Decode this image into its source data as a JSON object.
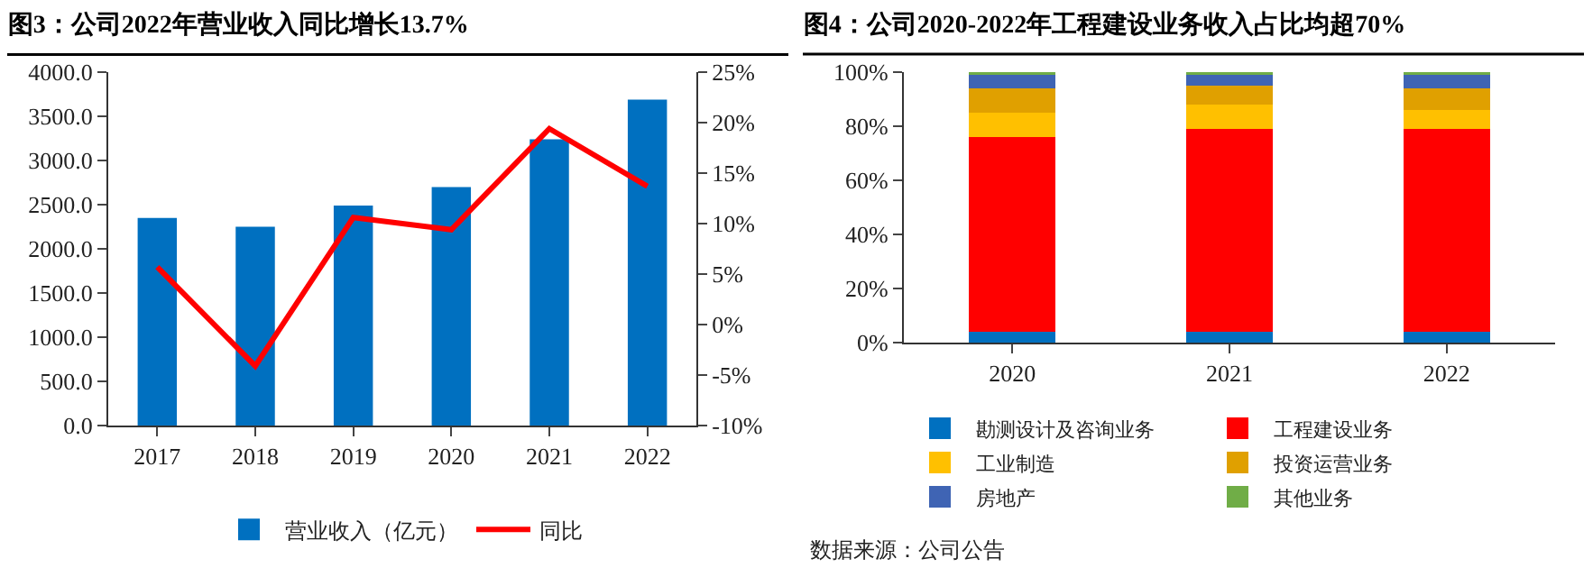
{
  "chart_data": [
    {
      "type": "bar",
      "title": "图3：公司2022年营业收入同比增长13.7%",
      "categories": [
        "2017",
        "2018",
        "2019",
        "2020",
        "2021",
        "2022"
      ],
      "series": [
        {
          "name": "营业收入（亿元）",
          "type": "bar",
          "color": "#0070c0",
          "values": [
            2350,
            2250,
            2490,
            2700,
            3240,
            3690
          ]
        },
        {
          "name": "同比",
          "type": "line",
          "axis": "y2",
          "color": "#ff0000",
          "values": [
            5.7,
            -4.1,
            10.6,
            9.4,
            19.4,
            13.7
          ]
        }
      ],
      "ylim": [
        0,
        4000
      ],
      "yticks": [
        {
          "value": 0,
          "label": "0.0"
        },
        {
          "value": 500,
          "label": "500.0"
        },
        {
          "value": 1000,
          "label": "1000.0"
        },
        {
          "value": 1500,
          "label": "1500.0"
        },
        {
          "value": 2000,
          "label": "2000.0"
        },
        {
          "value": 2500,
          "label": "2500.0"
        },
        {
          "value": 3000,
          "label": "3000.0"
        },
        {
          "value": 3500,
          "label": "3500.0"
        },
        {
          "value": 4000,
          "label": "4000.0"
        }
      ],
      "y2lim": [
        -10,
        25
      ],
      "y2ticks": [
        {
          "value": -10,
          "label": "-10%"
        },
        {
          "value": -5,
          "label": "-5%"
        },
        {
          "value": 0,
          "label": "0%"
        },
        {
          "value": 5,
          "label": "5%"
        },
        {
          "value": 10,
          "label": "10%"
        },
        {
          "value": 15,
          "label": "15%"
        },
        {
          "value": 20,
          "label": "20%"
        },
        {
          "value": 25,
          "label": "25%"
        }
      ],
      "legend": "bottom",
      "marker": "none"
    },
    {
      "type": "bar",
      "title": "图4：公司2020-2022年工程建设业务收入占比均超70%",
      "categories": [
        "2020",
        "2021",
        "2022"
      ],
      "stacked": true,
      "series": [
        {
          "name": "勘测设计及咨询业务",
          "color": "#0070c0",
          "values": [
            4,
            4,
            4
          ]
        },
        {
          "name": "工程建设业务",
          "color": "#ff0000",
          "values": [
            72,
            75,
            75
          ]
        },
        {
          "name": "工业制造",
          "color": "#ffc000",
          "values": [
            9,
            9,
            7
          ]
        },
        {
          "name": "投资运营业务",
          "color": "#e0a000",
          "values": [
            9,
            7,
            8
          ]
        },
        {
          "name": "房地产",
          "color": "#3f64b4",
          "values": [
            5,
            4,
            5
          ]
        },
        {
          "name": "其他业务",
          "color": "#70ad47",
          "values": [
            1,
            1,
            1
          ]
        }
      ],
      "ylim": [
        0,
        100
      ],
      "yticks": [
        {
          "value": 0,
          "label": "0%"
        },
        {
          "value": 20,
          "label": "20%"
        },
        {
          "value": 40,
          "label": "40%"
        },
        {
          "value": 60,
          "label": "60%"
        },
        {
          "value": 80,
          "label": "80%"
        },
        {
          "value": 100,
          "label": "100%"
        }
      ],
      "legend": "bottom",
      "annotations": [
        "数据来源：公司公告"
      ]
    }
  ]
}
